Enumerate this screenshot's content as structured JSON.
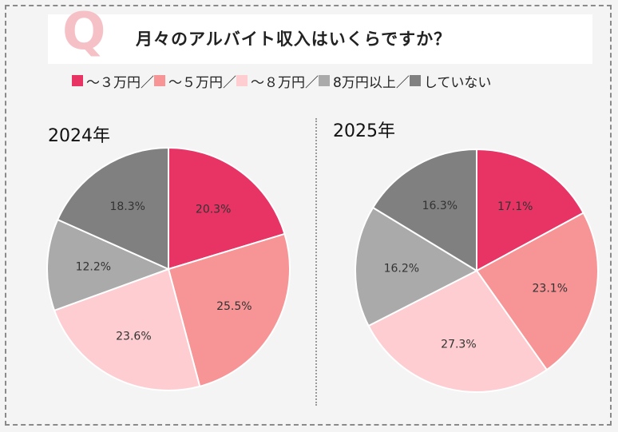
{
  "title": {
    "q_mark": "Q",
    "question": "月々のアルバイト収入はいくらですか？"
  },
  "legend": [
    {
      "label": "〜３万円／",
      "color": "#e73465"
    },
    {
      "label": "〜５万円／",
      "color": "#f79496"
    },
    {
      "label": "〜８万円／",
      "color": "#fdcdd1"
    },
    {
      "label": "8万円以上／",
      "color": "#aaaaaa"
    },
    {
      "label": "していない",
      "color": "#808080"
    }
  ],
  "chart_data": [
    {
      "type": "pie",
      "title": "2024年",
      "categories": [
        "〜３万円",
        "〜５万円",
        "〜８万円",
        "8万円以上",
        "していない"
      ],
      "values": [
        20.3,
        25.5,
        23.6,
        12.2,
        18.3
      ],
      "labels": [
        "20.3%",
        "25.5%",
        "23.6%",
        "12.2%",
        "18.3%"
      ]
    },
    {
      "type": "pie",
      "title": "2025年",
      "categories": [
        "〜３万円",
        "〜５万円",
        "〜８万円",
        "8万円以上",
        "していない"
      ],
      "values": [
        17.1,
        23.1,
        27.3,
        16.2,
        16.3
      ],
      "labels": [
        "17.1%",
        "23.1%",
        "27.3%",
        "16.2%",
        "16.3%"
      ]
    }
  ]
}
